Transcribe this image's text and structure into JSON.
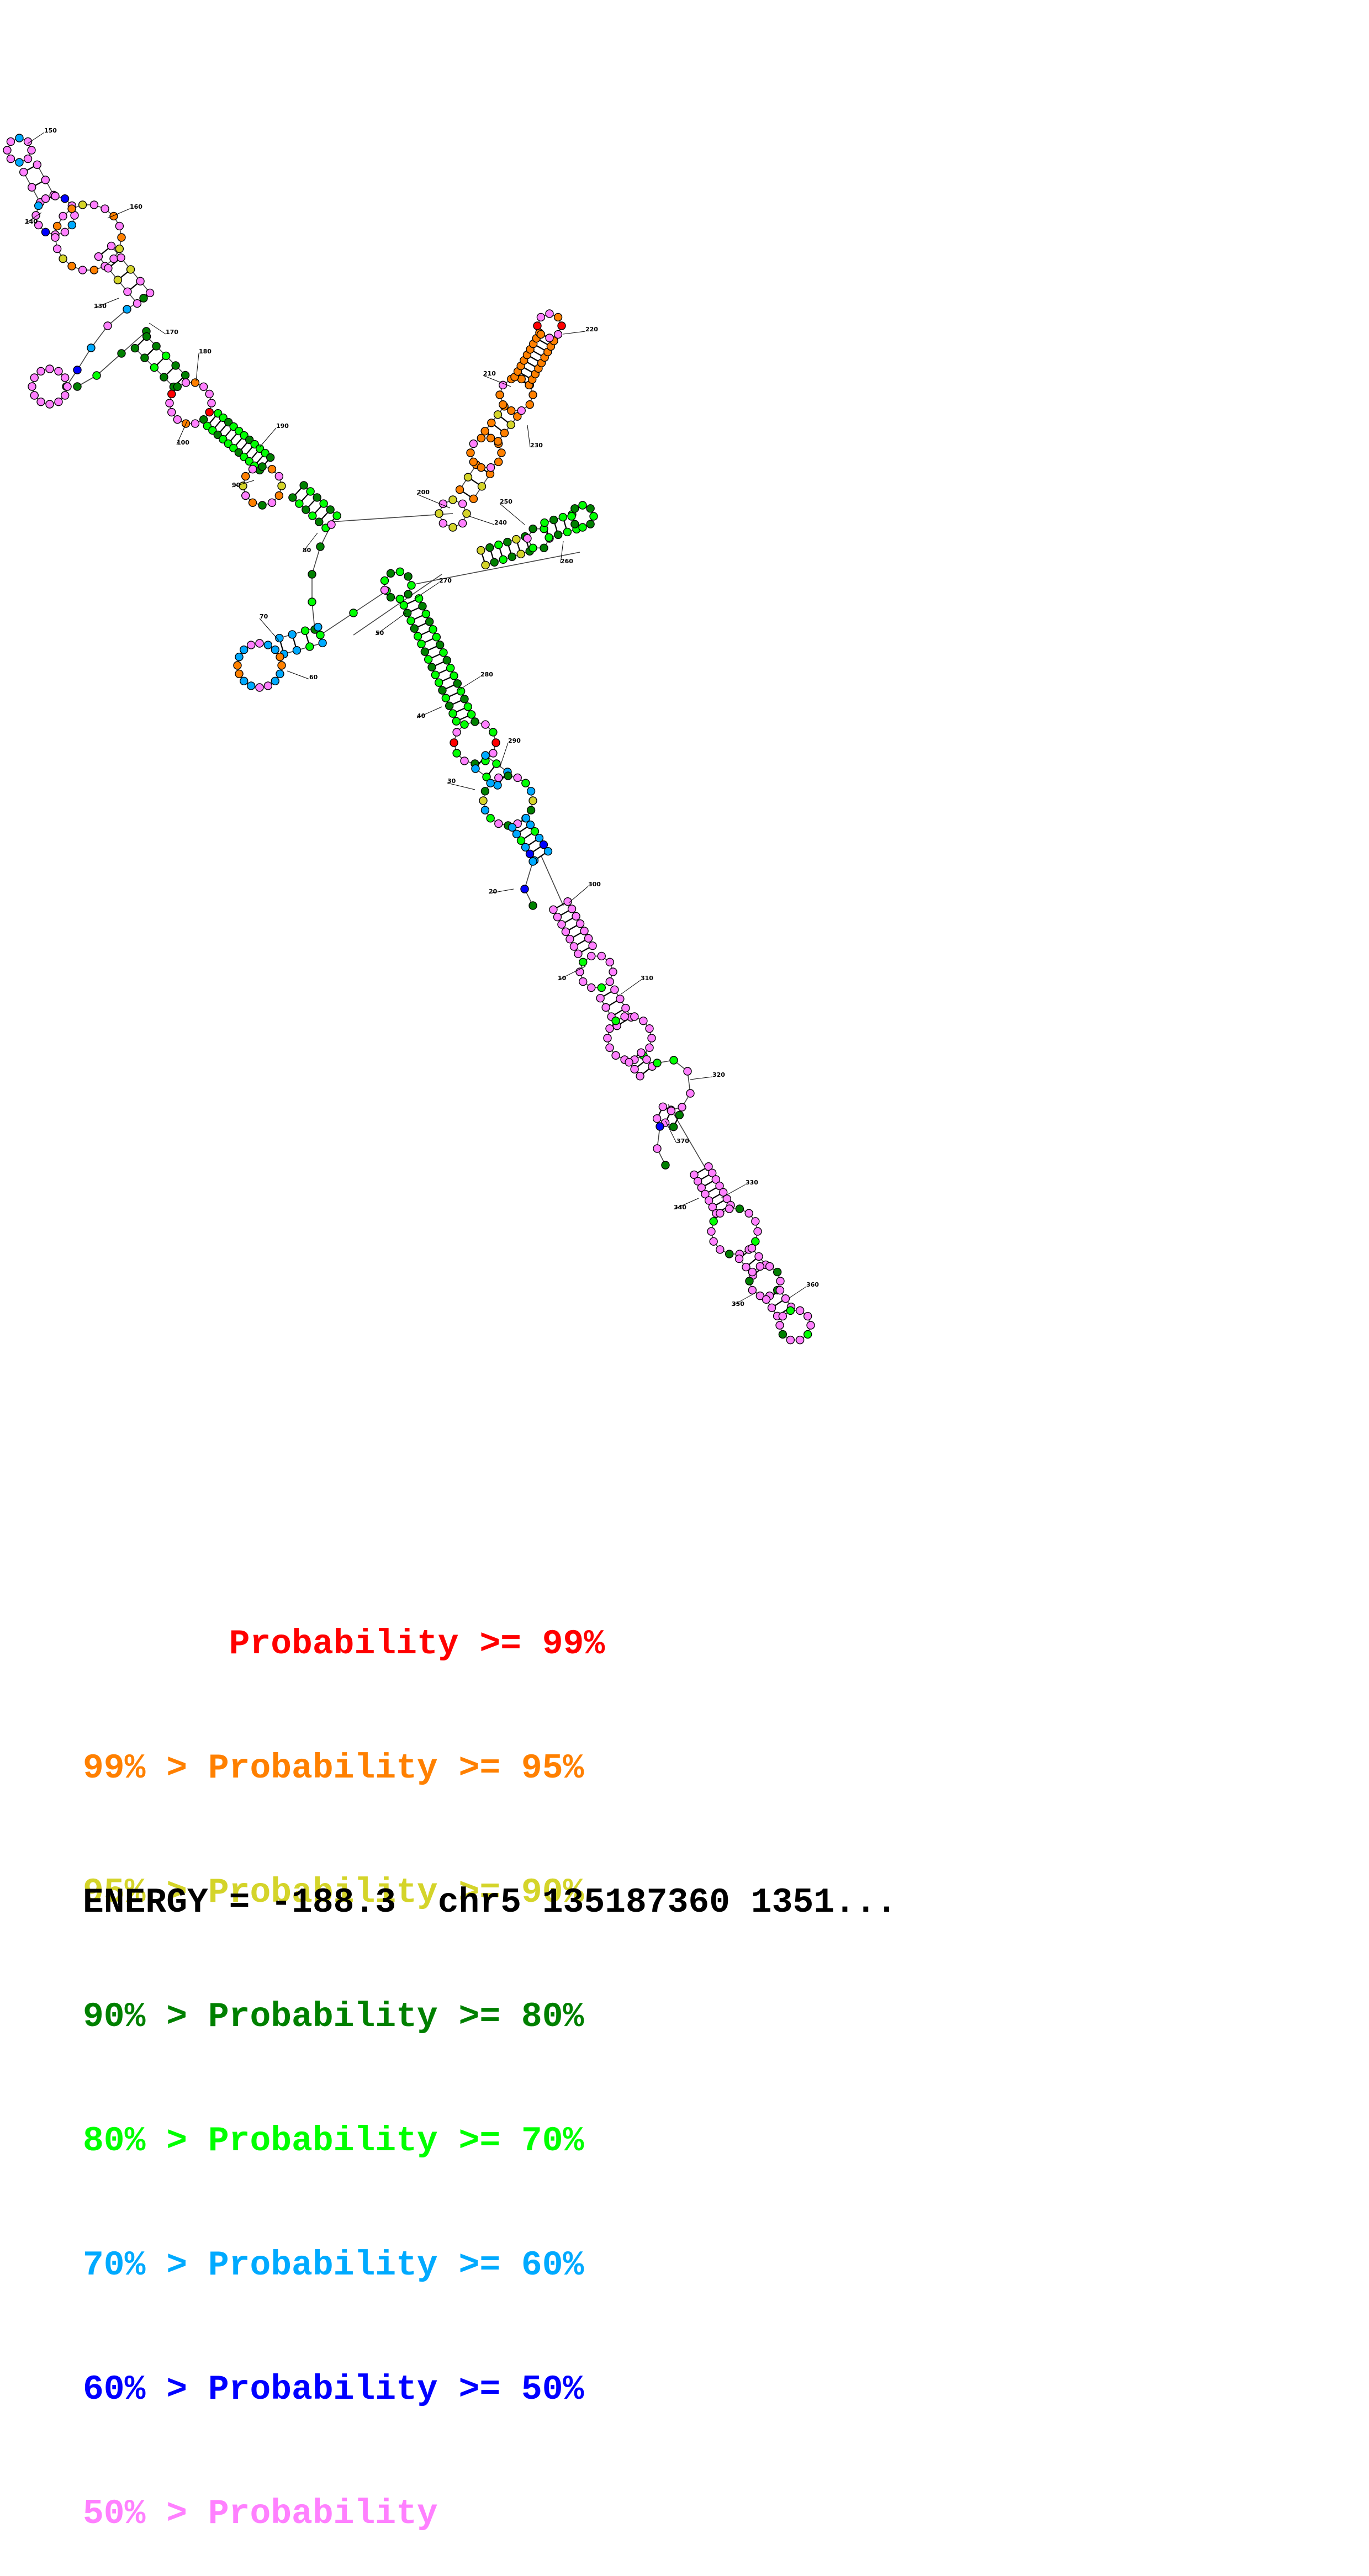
{
  "diagram": {
    "position_labels": [
      "10",
      "20",
      "30",
      "40",
      "50",
      "60",
      "70",
      "80",
      "90",
      "100",
      "130",
      "140",
      "150",
      "160",
      "170",
      "180",
      "190",
      "200",
      "210",
      "220",
      "230",
      "240",
      "250",
      "260",
      "270",
      "280",
      "290",
      "300",
      "310",
      "320",
      "330",
      "340",
      "350",
      "360",
      "370"
    ],
    "colors": {
      "p99": "#ff0000",
      "p95": "#ff8000",
      "p90": "#d4d42a",
      "p80": "#008000",
      "p70": "#00ff00",
      "p60": "#00aaff",
      "p50": "#0000ff",
      "plow": "#ff80ff"
    }
  },
  "legend": {
    "rows": [
      {
        "text": "       Probability >= 99%",
        "color": "#ff0000"
      },
      {
        "text": "99% > Probability >= 95%",
        "color": "#ff8000"
      },
      {
        "text": "95% > Probability >= 90%",
        "color": "#d4d42a"
      },
      {
        "text": "90% > Probability >= 80%",
        "color": "#008000"
      },
      {
        "text": "80% > Probability >= 70%",
        "color": "#00ff00"
      },
      {
        "text": "70% > Probability >= 60%",
        "color": "#00aaff"
      },
      {
        "text": "60% > Probability >= 50%",
        "color": "#0000ff"
      },
      {
        "text": "50% > Probability",
        "color": "#ff80ff"
      }
    ]
  },
  "energy": {
    "text": "ENERGY = -188.3  chr5 135187360 1351..."
  }
}
